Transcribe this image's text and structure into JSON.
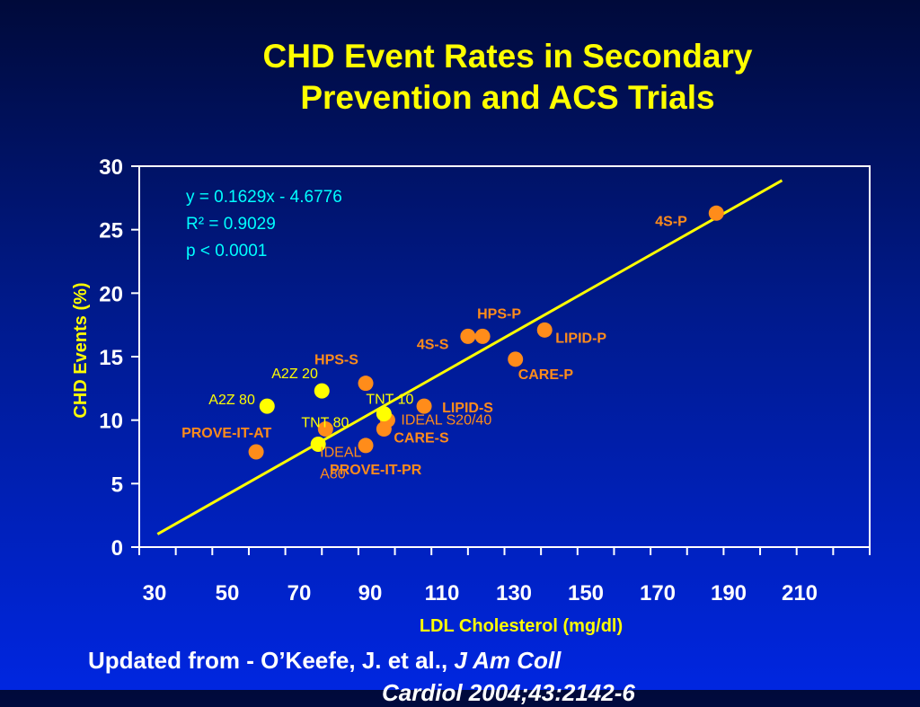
{
  "slide": {
    "title_line1": "CHD Event Rates in Secondary",
    "title_line2": "Prevention and ACS Trials",
    "citation_prefix": "Updated from -  O’Keefe, J. et al., ",
    "citation_journal": "J Am Coll",
    "citation_line2": "Cardiol 2004;43:2142-6"
  },
  "colors": {
    "title": "#ffff00",
    "axis_text": "#ffffff",
    "ylabel": "#ffff00",
    "xlabel": "#ffff00",
    "regression_line": "#ffff00",
    "equation_text": "#00ffff",
    "orange_series": "#ff8c1a",
    "yellow_series": "#ffff00",
    "orange_label": "#ff8c1a",
    "yellow_label": "#ffff00",
    "plot_border": "#ffffff"
  },
  "chart_data": {
    "type": "scatter",
    "xlabel": "LDL Cholesterol (mg/dl)",
    "ylabel": "CHD Events (%)",
    "xlim": [
      30,
      230
    ],
    "ylim": [
      0,
      30
    ],
    "x_ticks": [
      "30",
      "50",
      "70",
      "90",
      "110",
      "130",
      "150",
      "170",
      "190",
      "210"
    ],
    "y_ticks": [
      "0",
      "5",
      "10",
      "15",
      "20",
      "25",
      "30"
    ],
    "grid": false,
    "annotation": {
      "equation": "y = 0.1629x - 4.6776",
      "r_squared": "R² = 0.9029",
      "p_value": "p < 0.0001"
    },
    "regression": {
      "slope": 0.1629,
      "intercept": -4.6776,
      "x_range": [
        35,
        206
      ]
    },
    "series": [
      {
        "color": "orange",
        "points": [
          {
            "label": "4S-P",
            "x": 188,
            "y": 26.3
          },
          {
            "label": "HPS-P",
            "x": 124,
            "y": 16.6
          },
          {
            "label": "4S-S",
            "x": 120,
            "y": 16.6
          },
          {
            "label": "LIPID-P",
            "x": 141,
            "y": 17.1
          },
          {
            "label": "CARE-P",
            "x": 133,
            "y": 14.8
          },
          {
            "label": "HPS-S",
            "x": 92,
            "y": 12.9
          },
          {
            "label": "LIPID-S",
            "x": 108,
            "y": 11.1
          },
          {
            "label": "IDEAL S20/40",
            "x": 98,
            "y": 10
          },
          {
            "label": "CARE-S",
            "x": 97,
            "y": 9.3
          },
          {
            "label": "TNT 80",
            "x": 81,
            "y": 9.3
          },
          {
            "label": "PROVE-IT-PR",
            "x": 92,
            "y": 8
          },
          {
            "label": "PROVE-IT-AT",
            "x": 62,
            "y": 7.5
          }
        ]
      },
      {
        "color": "yellow",
        "points": [
          {
            "label": "A2Z 80",
            "x": 65,
            "y": 11.1
          },
          {
            "label": "A2Z 20",
            "x": 80,
            "y": 12.3
          },
          {
            "label": "TNT 10",
            "x": 97,
            "y": 10.5
          },
          {
            "label": "IDEAL A80",
            "x": 79,
            "y": 8.1
          }
        ]
      }
    ]
  }
}
